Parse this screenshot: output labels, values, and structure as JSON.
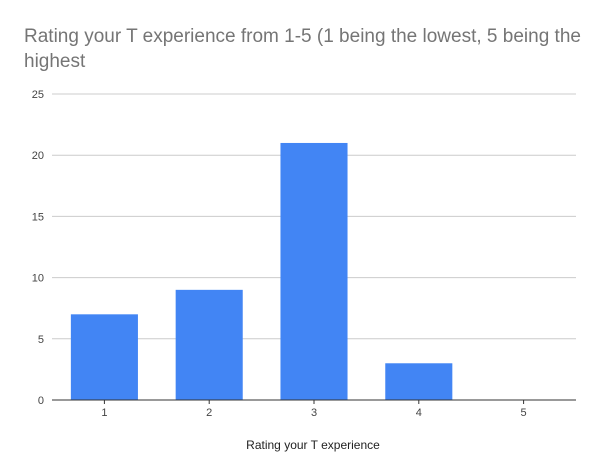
{
  "chart_data": {
    "type": "bar",
    "title": "Rating your T experience from 1-5 (1 being the lowest, 5 being the highest",
    "xlabel": "Rating your T experience",
    "ylabel": "",
    "categories": [
      "1",
      "2",
      "3",
      "4",
      "5"
    ],
    "series": [
      {
        "values": [
          7,
          9,
          21,
          3,
          0
        ]
      }
    ],
    "ylim": [
      0,
      25
    ],
    "yticks": [
      "0",
      "5",
      "10",
      "15",
      "20",
      "25"
    ],
    "grid": true,
    "legend": "none",
    "colors": {
      "bar": "#4285f4",
      "grid": "#cccccc",
      "axis": "#333333"
    }
  }
}
